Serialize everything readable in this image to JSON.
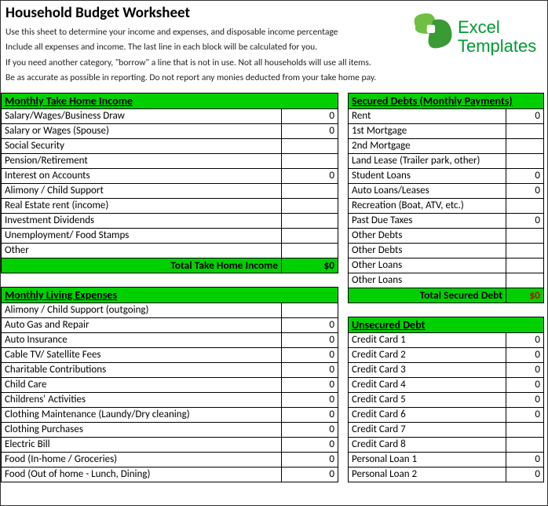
{
  "colors": {
    "header_bg": "#00d000",
    "total_red": "#d00000",
    "border": "#000000",
    "logo_green": "#009933"
  },
  "fonts": {
    "body": "Calibri, Arial, sans-serif",
    "logo": "Comic Sans MS"
  },
  "header": {
    "title": "Household Budget Worksheet",
    "instructions": [
      "Use this sheet to determine your income and expenses, and disposable income percentage",
      "Include all expenses and income. The last line in each block will be calculated for you.",
      "If you need another category, \"borrow\" a line that is not in use. Not all households will use all items.",
      "Be as accurate as possible in reporting. Do not report any monies deducted from your take home pay."
    ],
    "logo_line1": "Excel",
    "logo_line2": "Templates"
  },
  "income": {
    "title": "Monthly Take Home Income",
    "rows": [
      {
        "label": "Salary/Wages/Business Draw",
        "value": "0"
      },
      {
        "label": "Salary or Wages (Spouse)",
        "value": "0"
      },
      {
        "label": "Social Security",
        "value": ""
      },
      {
        "label": "Pension/Retirement",
        "value": ""
      },
      {
        "label": "Interest on Accounts",
        "value": "0"
      },
      {
        "label": "Alimony / Child Support",
        "value": ""
      },
      {
        "label": "Real Estate rent (income)",
        "value": ""
      },
      {
        "label": "Investment Dividends",
        "value": ""
      },
      {
        "label": "Unemployment/ Food Stamps",
        "value": ""
      },
      {
        "label": "Other",
        "value": ""
      }
    ],
    "total_label": "Total Take Home Income",
    "total_value": "$0"
  },
  "expenses": {
    "title": "Monthly Living Expenses",
    "rows": [
      {
        "label": "Alimony / Child Support (outgoing)",
        "value": ""
      },
      {
        "label": "Auto Gas and Repair",
        "value": "0"
      },
      {
        "label": "Auto Insurance",
        "value": "0"
      },
      {
        "label": "Cable TV/ Satellite Fees",
        "value": "0"
      },
      {
        "label": "Charitable Contributions",
        "value": "0"
      },
      {
        "label": "Child Care",
        "value": "0"
      },
      {
        "label": "Childrens' Activities",
        "value": "0"
      },
      {
        "label": "Clothing Maintenance (Laundy/Dry cleaning)",
        "value": "0"
      },
      {
        "label": "Clothing Purchases",
        "value": "0"
      },
      {
        "label": "Electric Bill",
        "value": "0"
      },
      {
        "label": "Food (In-home / Groceries)",
        "value": "0"
      },
      {
        "label": "Food (Out of home - Lunch, Dining)",
        "value": "0"
      }
    ]
  },
  "secured": {
    "title": "Secured Debts (Monthly Payments)",
    "rows": [
      {
        "label": "Rent",
        "value": "0"
      },
      {
        "label": "1st Mortgage",
        "value": ""
      },
      {
        "label": "2nd Mortgage",
        "value": ""
      },
      {
        "label": "Land Lease (Trailer park, other)",
        "value": ""
      },
      {
        "label": "Student Loans",
        "value": "0"
      },
      {
        "label": "Auto Loans/Leases",
        "value": "0"
      },
      {
        "label": "Recreation (Boat, ATV, etc.)",
        "value": ""
      },
      {
        "label": "Past Due Taxes",
        "value": "0"
      },
      {
        "label": "Other Debts",
        "value": ""
      },
      {
        "label": "Other Debts",
        "value": ""
      },
      {
        "label": "Other Loans",
        "value": ""
      },
      {
        "label": "Other Loans",
        "value": ""
      }
    ],
    "total_label": "Total Secured Debt",
    "total_value": "$0"
  },
  "unsecured": {
    "title": "Unsecured Debt",
    "rows": [
      {
        "label": "Credit Card 1",
        "value": "0"
      },
      {
        "label": "Credit Card 2",
        "value": "0"
      },
      {
        "label": "Credit Card 3",
        "value": "0"
      },
      {
        "label": "Credit Card 4",
        "value": "0"
      },
      {
        "label": "Credit Card 5",
        "value": "0"
      },
      {
        "label": "Credit Card 6",
        "value": "0"
      },
      {
        "label": "Credit Card 7",
        "value": ""
      },
      {
        "label": "Credit Card 8",
        "value": ""
      },
      {
        "label": "Personal Loan 1",
        "value": "0"
      },
      {
        "label": "Personal Loan 2",
        "value": "0"
      }
    ]
  }
}
